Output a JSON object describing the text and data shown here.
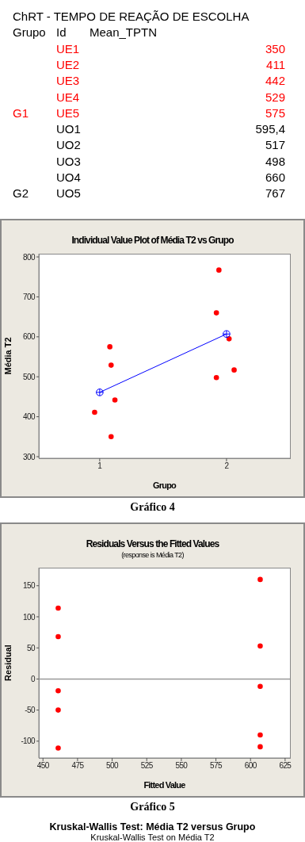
{
  "chart_data": [
    {
      "type": "other",
      "title": "ChRT - TEMPO DE REAÇÃO DE ESCOLHA",
      "annotations": [
        "Grupo",
        "Id",
        "Mean_TPTN",
        {
          "text": "G1",
          "y": "UE5"
        },
        {
          "text": "G2",
          "y": "UO5"
        }
      ],
      "categories": [
        "UE1",
        "UE2",
        "UE3",
        "UE4",
        "UE5",
        "UO1",
        "UO2",
        "UO3",
        "UO4",
        "UO5"
      ],
      "value_labels": [
        "350",
        "411",
        "442",
        "529",
        "575",
        "595,4",
        "517",
        "498",
        "660",
        "767"
      ],
      "colors": [
        "#ff0000",
        "#ff0000",
        "#ff0000",
        "#ff0000",
        "#ff0000",
        "#000000",
        "#000000",
        "#000000",
        "#000000",
        "#000000"
      ]
    },
    {
      "type": "scatter",
      "title": "Individual Value Plot of Média T2 vs Grupo",
      "xlabel": "Grupo",
      "ylabel": "Média T2",
      "annotations": [
        "Gráfico 4"
      ],
      "xlim": [
        0.52,
        2.5
      ],
      "xticks": [
        1,
        2
      ],
      "ylim": [
        296,
        808
      ],
      "yticks": [
        300,
        400,
        500,
        600,
        700,
        800
      ],
      "series": [
        {
          "type": "scatter",
          "color": "#ff0000",
          "marker": "circle",
          "x": [
            1.09,
            0.96,
            1.12,
            1.09,
            1.08,
            2.02,
            2.06,
            1.92,
            1.92,
            1.94
          ],
          "values": [
            350,
            411,
            442,
            529,
            575,
            595,
            517,
            498,
            660,
            767
          ]
        },
        {
          "type": "line",
          "color": "#0000ff",
          "marker": "circle",
          "x": [
            1,
            2
          ],
          "values": [
            461,
            607
          ]
        }
      ]
    },
    {
      "type": "scatter",
      "title": "Residuals Versus the Fitted Values",
      "subtitle": "(response is Média T2)",
      "xlabel": "Fitted Value",
      "ylabel": "Residual",
      "annotations": [
        "Gráfico 5"
      ],
      "xlim": [
        447,
        628.5
      ],
      "xticks": [
        450,
        475,
        500,
        525,
        550,
        575,
        600,
        625
      ],
      "ylim": [
        -127,
        179
      ],
      "yticks": [
        -100,
        -50,
        0,
        50,
        100,
        150
      ],
      "marker": "circle",
      "ref_lines": [
        {
          "axis": "y",
          "value": 0,
          "color": "#999999"
        }
      ],
      "series": [
        {
          "color": "#ff0000",
          "x": [
            461,
            461,
            461,
            461,
            461,
            607,
            607,
            607,
            607,
            607
          ],
          "values": [
            -111,
            -50,
            -19,
            68,
            114,
            160,
            53,
            -12,
            -90,
            -109
          ]
        }
      ]
    },
    {
      "type": "other",
      "title": "Kruskal-Wallis Test: Média T2 versus Grupo",
      "subtitle": "Kruskal-Wallis Test on Média T2"
    }
  ]
}
